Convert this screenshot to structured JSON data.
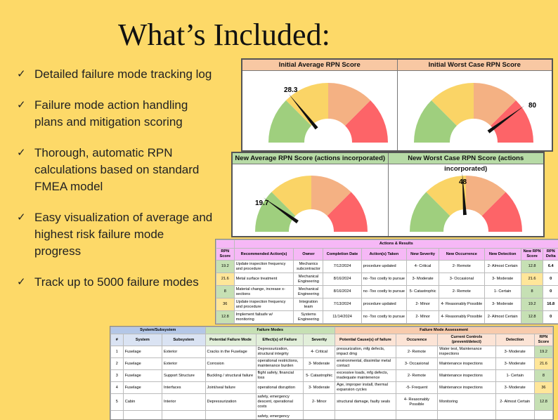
{
  "title": "What’s Included:",
  "bullets": [
    "Detailed failure mode tracking log",
    "Failure mode action handling plans and mitigation scoring",
    "Thorough, automatic RPN calculations based on standard FMEA model",
    "Easy visualization of average and highest risk failure mode progress",
    "Track up to 5000 failure modes"
  ],
  "check_icon": "✓",
  "gauges": [
    {
      "title": "Initial Average RPN Score",
      "value_label": "28.3",
      "value": 28.3
    },
    {
      "title": "Initial Worst Case RPN Score",
      "value_label": "80",
      "value": 80
    },
    {
      "title": "New Average RPN Score (actions incorporated)",
      "value_label": "19.7",
      "value": 19.7
    },
    {
      "title": "New Worst Case RPN Score (actions incorporated)",
      "value_label": "48",
      "value": 48
    }
  ],
  "gauge_colors": [
    "#9fcf7e",
    "#fad466",
    "#f4b183",
    "#fd6468"
  ],
  "actions": {
    "title": "Actions & Results",
    "headers": [
      "RPN Score",
      "Recommended Action(s)",
      "Owner",
      "Completion Date",
      "Action(s) Taken",
      "New Severity",
      "New Occurrence",
      "New Detection",
      "New RPN Score",
      "RPN Delta"
    ],
    "rows": [
      [
        "19.2",
        "Update inspection frequency and procedure",
        "Mechanics subcontractor",
        "7/12/2024",
        "procedure updated",
        "4- Critical",
        "2- Remote",
        "2- Almost Certain",
        "12.8",
        "6.4"
      ],
      [
        "21.6",
        "Metal surface treatment",
        "Mechanical Engineering",
        "8/16/2024",
        "no -Too costly to pursue",
        "3- Moderate",
        "3- Occasional",
        "3- Moderate",
        "21.6",
        "0"
      ],
      [
        "8",
        "Material change, increase x-sections",
        "Mechanical Engineering",
        "8/16/2024",
        "no -Too costly to pursue",
        "5- Catastrophic",
        "2- Remote",
        "1- Certain",
        "8",
        "0"
      ],
      [
        "36",
        "Update inspection frequency and procedure",
        "Integration team",
        "7/13/2024",
        "procedure updated",
        "2- Minor",
        "4- Reasonably Possible",
        "3- Moderate",
        "19.2",
        "16.8"
      ],
      [
        "12.8",
        "Implement failsafe w/ monitoring",
        "Systems Engineering",
        "11/14/2024",
        "no -Too costly to pursue",
        "2- Minor",
        "4- Reasonably Possible",
        "2- Almost Certain",
        "12.8",
        "0"
      ]
    ]
  },
  "modes": {
    "group_headers": [
      "System/Subsystem",
      "Failure Modes",
      "Failure Mode Assessment"
    ],
    "headers": [
      "#",
      "System",
      "Subsystem",
      "Potential Failure Mode",
      "Effect(s) of Failure",
      "Severity",
      "Potential Cause(s) of failure",
      "Occurence",
      "Current Controls (prevent/detect)",
      "Detection",
      "RPN Score"
    ],
    "rows": [
      [
        "1",
        "Fuselage",
        "Exterior",
        "Cracks in the Fuselage",
        "Depressurization, structural integrity",
        "4- Critical",
        "pressurization, mfg defects, impact dmg",
        "2- Remote",
        "Water test, Maintenance inspections",
        "3- Moderate",
        "19.2"
      ],
      [
        "2",
        "Fuselage",
        "Exterior",
        "Corrosion",
        "operational restrictions, maintenance burden",
        "3- Moderate",
        "environmental, dissimilar metal contact",
        "3- Occasional",
        "Maintenance inspections",
        "3- Moderate",
        "21.6"
      ],
      [
        "3",
        "Fuselage",
        "Support Structure",
        "Buckling / structural failure",
        "flight safety, financial loss",
        "5- Catastrophic",
        "excessive loads, mfg defects, inadequate maintenence",
        "2- Remote",
        "Maintenance inspections",
        "1- Certain",
        "8"
      ],
      [
        "4",
        "Fuselage",
        "Interfaces",
        "Joint/seal failure",
        "operational disruption",
        "3- Moderate",
        "Age, improper install, thermal expansion cycles",
        "-5- Frequent",
        "Maintenance inspections",
        "3- Moderate",
        "36"
      ],
      [
        "5",
        "Cabin",
        "Interior",
        "Depressurization",
        "safety, emergency descent, operational costs",
        "2- Minor",
        "structural damage, faulty seals",
        "4- Reasonably Possible",
        "Monitoring",
        "2- Almost Certain",
        "12.8"
      ],
      [
        "",
        "",
        "",
        "",
        "safety, emergency",
        "",
        "",
        "",
        "",
        "",
        ""
      ]
    ]
  }
}
